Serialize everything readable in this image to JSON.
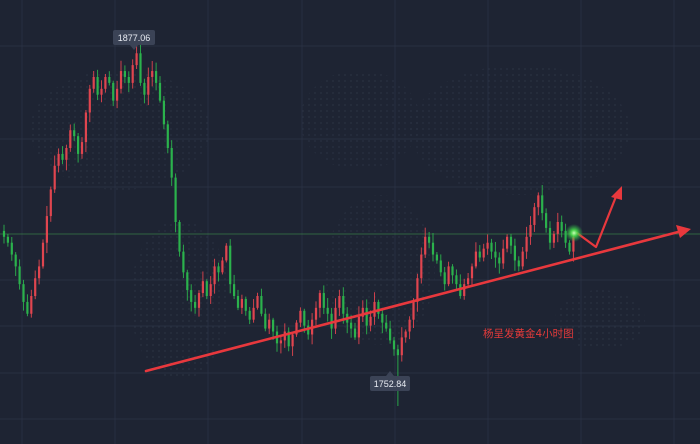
{
  "chart_data": {
    "type": "candlestick",
    "title": "",
    "xlabel": "",
    "ylabel": "",
    "ylim": [
      1740,
      1890
    ],
    "grid": true,
    "high_label": "1877.06",
    "low_label": "1752.84",
    "annotation": "杨呈发黄金4小时图",
    "colors": {
      "background": "#1e2433",
      "up": "#e0454f",
      "down": "#2bb24c",
      "trendline": "#e8383d",
      "grid": "#2c3447",
      "hline": "#3e8f4a",
      "label_bg": "#3b4356",
      "label_text": "#e8ebf2",
      "glow": "#7dff6a"
    },
    "close": [
      1810,
      1808,
      1804,
      1800,
      1794,
      1788,
      1784,
      1790,
      1796,
      1800,
      1808,
      1817,
      1826,
      1834,
      1838,
      1836,
      1840,
      1846,
      1844,
      1838,
      1842,
      1852,
      1860,
      1864,
      1858,
      1860,
      1864,
      1862,
      1856,
      1860,
      1866,
      1864,
      1862,
      1868,
      1872,
      1862,
      1858,
      1864,
      1866,
      1862,
      1856,
      1848,
      1840,
      1830,
      1815,
      1805,
      1798,
      1792,
      1788,
      1786,
      1791,
      1795,
      1790,
      1794,
      1800,
      1798,
      1802,
      1807,
      1794,
      1790,
      1786,
      1789,
      1785,
      1782,
      1786,
      1790,
      1784,
      1779,
      1782,
      1778,
      1774,
      1775,
      1778,
      1773,
      1777,
      1781,
      1785,
      1780,
      1777,
      1782,
      1786,
      1791,
      1786,
      1784,
      1779,
      1786,
      1790,
      1784,
      1781,
      1779,
      1776,
      1783,
      1786,
      1780,
      1783,
      1788,
      1784,
      1781,
      1779,
      1775,
      1772,
      1770,
      1776,
      1778,
      1782,
      1788,
      1796,
      1804,
      1810,
      1808,
      1804,
      1802,
      1798,
      1794,
      1800,
      1797,
      1794,
      1790,
      1794,
      1796,
      1800,
      1805,
      1803,
      1806,
      1808,
      1805,
      1803,
      1801,
      1806,
      1810,
      1807,
      1802,
      1800,
      1805,
      1810,
      1814,
      1820,
      1824,
      1818,
      1813,
      1808,
      1811,
      1815,
      1812,
      1808,
      1805,
      1810
    ]
  }
}
